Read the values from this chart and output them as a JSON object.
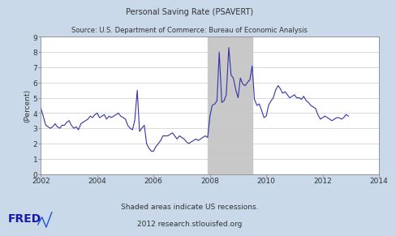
{
  "title_line1": "Personal Saving Rate (PSAVERT)",
  "title_line2": "Source: U.S. Department of Commerce: Bureau of Economic Analysis",
  "ylabel": "(Percent)",
  "xlim": [
    2002,
    2014
  ],
  "ylim": [
    0,
    9
  ],
  "yticks": [
    0,
    1,
    2,
    3,
    4,
    5,
    6,
    7,
    8,
    9
  ],
  "xticks": [
    2002,
    2004,
    2006,
    2008,
    2010,
    2012,
    2014
  ],
  "recession_start": 2007.92,
  "recession_end": 2009.5,
  "line_color": "#3333aa",
  "recession_color": "#c8c8c8",
  "bg_color": "#c9d9ea",
  "plot_bg_color": "#ffffff",
  "footer_line1": "Shaded areas indicate US recessions.",
  "footer_line2": "2012 research.stlouisfed.org",
  "fred_text": "FRED",
  "data": [
    [
      2002.0,
      4.3
    ],
    [
      2002.08,
      3.8
    ],
    [
      2002.17,
      3.2
    ],
    [
      2002.25,
      3.1
    ],
    [
      2002.33,
      3.0
    ],
    [
      2002.42,
      3.1
    ],
    [
      2002.5,
      3.3
    ],
    [
      2002.58,
      3.1
    ],
    [
      2002.67,
      3.0
    ],
    [
      2002.75,
      3.2
    ],
    [
      2002.83,
      3.2
    ],
    [
      2002.92,
      3.4
    ],
    [
      2003.0,
      3.5
    ],
    [
      2003.08,
      3.2
    ],
    [
      2003.17,
      3.0
    ],
    [
      2003.25,
      3.1
    ],
    [
      2003.33,
      2.9
    ],
    [
      2003.42,
      3.3
    ],
    [
      2003.5,
      3.4
    ],
    [
      2003.58,
      3.5
    ],
    [
      2003.67,
      3.6
    ],
    [
      2003.75,
      3.8
    ],
    [
      2003.83,
      3.7
    ],
    [
      2003.92,
      3.9
    ],
    [
      2004.0,
      4.0
    ],
    [
      2004.08,
      3.7
    ],
    [
      2004.17,
      3.8
    ],
    [
      2004.25,
      3.9
    ],
    [
      2004.33,
      3.6
    ],
    [
      2004.42,
      3.8
    ],
    [
      2004.5,
      3.7
    ],
    [
      2004.58,
      3.8
    ],
    [
      2004.67,
      3.9
    ],
    [
      2004.75,
      4.0
    ],
    [
      2004.83,
      3.8
    ],
    [
      2004.92,
      3.7
    ],
    [
      2005.0,
      3.6
    ],
    [
      2005.08,
      3.2
    ],
    [
      2005.17,
      3.0
    ],
    [
      2005.25,
      2.9
    ],
    [
      2005.33,
      3.5
    ],
    [
      2005.42,
      5.5
    ],
    [
      2005.5,
      2.8
    ],
    [
      2005.58,
      3.0
    ],
    [
      2005.67,
      3.2
    ],
    [
      2005.75,
      2.0
    ],
    [
      2005.83,
      1.7
    ],
    [
      2005.92,
      1.5
    ],
    [
      2006.0,
      1.5
    ],
    [
      2006.08,
      1.8
    ],
    [
      2006.17,
      2.0
    ],
    [
      2006.25,
      2.2
    ],
    [
      2006.33,
      2.5
    ],
    [
      2006.42,
      2.5
    ],
    [
      2006.5,
      2.5
    ],
    [
      2006.58,
      2.6
    ],
    [
      2006.67,
      2.7
    ],
    [
      2006.75,
      2.5
    ],
    [
      2006.83,
      2.3
    ],
    [
      2006.92,
      2.5
    ],
    [
      2007.0,
      2.4
    ],
    [
      2007.08,
      2.3
    ],
    [
      2007.17,
      2.1
    ],
    [
      2007.25,
      2.0
    ],
    [
      2007.33,
      2.1
    ],
    [
      2007.42,
      2.2
    ],
    [
      2007.5,
      2.3
    ],
    [
      2007.58,
      2.2
    ],
    [
      2007.67,
      2.3
    ],
    [
      2007.75,
      2.4
    ],
    [
      2007.83,
      2.5
    ],
    [
      2007.92,
      2.4
    ],
    [
      2008.0,
      3.8
    ],
    [
      2008.08,
      4.5
    ],
    [
      2008.17,
      4.6
    ],
    [
      2008.25,
      4.8
    ],
    [
      2008.33,
      8.0
    ],
    [
      2008.42,
      4.7
    ],
    [
      2008.5,
      4.8
    ],
    [
      2008.58,
      5.2
    ],
    [
      2008.67,
      8.3
    ],
    [
      2008.75,
      6.5
    ],
    [
      2008.83,
      6.3
    ],
    [
      2008.92,
      5.5
    ],
    [
      2009.0,
      5.0
    ],
    [
      2009.08,
      6.3
    ],
    [
      2009.17,
      5.9
    ],
    [
      2009.25,
      5.8
    ],
    [
      2009.33,
      6.0
    ],
    [
      2009.42,
      6.2
    ],
    [
      2009.5,
      7.1
    ],
    [
      2009.58,
      4.9
    ],
    [
      2009.67,
      4.5
    ],
    [
      2009.75,
      4.6
    ],
    [
      2009.83,
      4.2
    ],
    [
      2009.92,
      3.7
    ],
    [
      2010.0,
      3.8
    ],
    [
      2010.08,
      4.5
    ],
    [
      2010.17,
      4.8
    ],
    [
      2010.25,
      5.0
    ],
    [
      2010.33,
      5.5
    ],
    [
      2010.42,
      5.8
    ],
    [
      2010.5,
      5.6
    ],
    [
      2010.58,
      5.3
    ],
    [
      2010.67,
      5.4
    ],
    [
      2010.75,
      5.2
    ],
    [
      2010.83,
      5.0
    ],
    [
      2010.92,
      5.1
    ],
    [
      2011.0,
      5.2
    ],
    [
      2011.08,
      5.0
    ],
    [
      2011.17,
      5.0
    ],
    [
      2011.25,
      4.9
    ],
    [
      2011.33,
      5.1
    ],
    [
      2011.42,
      4.8
    ],
    [
      2011.5,
      4.7
    ],
    [
      2011.58,
      4.5
    ],
    [
      2011.67,
      4.4
    ],
    [
      2011.75,
      4.3
    ],
    [
      2011.83,
      3.9
    ],
    [
      2011.92,
      3.6
    ],
    [
      2012.0,
      3.7
    ],
    [
      2012.08,
      3.8
    ],
    [
      2012.17,
      3.7
    ],
    [
      2012.25,
      3.6
    ],
    [
      2012.33,
      3.5
    ],
    [
      2012.42,
      3.6
    ],
    [
      2012.5,
      3.7
    ],
    [
      2012.58,
      3.7
    ],
    [
      2012.67,
      3.6
    ],
    [
      2012.75,
      3.7
    ],
    [
      2012.83,
      3.9
    ],
    [
      2012.92,
      3.8
    ]
  ]
}
